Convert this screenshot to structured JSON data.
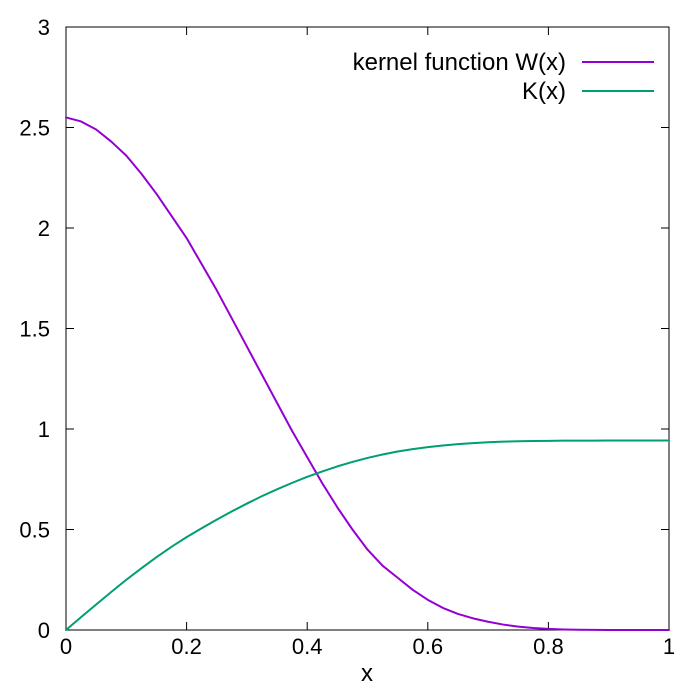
{
  "chart_data": {
    "type": "line",
    "title": "",
    "xlabel": "x",
    "ylabel": "",
    "xlim": [
      0,
      1
    ],
    "ylim": [
      0,
      3
    ],
    "xticks": [
      0,
      0.2,
      0.4,
      0.6,
      0.8,
      1
    ],
    "xtick_labels": [
      "0",
      "0.2",
      "0.4",
      "0.6",
      "0.8",
      "1"
    ],
    "yticks": [
      0,
      0.5,
      1,
      1.5,
      2,
      2.5,
      3
    ],
    "ytick_labels": [
      "0",
      "0.5",
      "1",
      "1.5",
      "2",
      "2.5",
      "3"
    ],
    "grid": false,
    "legend_position": "top-right",
    "series": [
      {
        "name": "kernel function W(x)",
        "color": "#9400d3",
        "x": [
          0,
          0.025,
          0.05,
          0.075,
          0.1,
          0.125,
          0.15,
          0.175,
          0.2,
          0.225,
          0.25,
          0.275,
          0.3,
          0.325,
          0.35,
          0.375,
          0.4,
          0.425,
          0.45,
          0.475,
          0.5,
          0.525,
          0.55,
          0.575,
          0.6,
          0.625,
          0.65,
          0.675,
          0.7,
          0.725,
          0.75,
          0.775,
          0.8,
          0.825,
          0.85,
          0.875,
          0.9,
          0.925,
          0.95,
          0.975,
          1
        ],
        "y": [
          2.55,
          2.53,
          2.49,
          2.43,
          2.36,
          2.27,
          2.17,
          2.06,
          1.95,
          1.82,
          1.69,
          1.55,
          1.41,
          1.27,
          1.13,
          0.99,
          0.86,
          0.73,
          0.61,
          0.5,
          0.4,
          0.32,
          0.26,
          0.2,
          0.15,
          0.11,
          0.08,
          0.058,
          0.041,
          0.027,
          0.017,
          0.01,
          0.0055,
          0.0027,
          0.0012,
          0.0005,
          0.0002,
          5e-05,
          1e-05,
          0,
          0
        ]
      },
      {
        "name": "K(x)",
        "color": "#009e73",
        "x": [
          0,
          0.025,
          0.05,
          0.075,
          0.1,
          0.125,
          0.15,
          0.175,
          0.2,
          0.225,
          0.25,
          0.275,
          0.3,
          0.325,
          0.35,
          0.375,
          0.4,
          0.425,
          0.45,
          0.475,
          0.5,
          0.525,
          0.55,
          0.575,
          0.6,
          0.625,
          0.65,
          0.675,
          0.7,
          0.725,
          0.75,
          0.775,
          0.8,
          0.825,
          0.85,
          0.875,
          0.9,
          0.925,
          0.95,
          0.975,
          1
        ],
        "y": [
          0,
          0.064,
          0.127,
          0.189,
          0.25,
          0.307,
          0.362,
          0.414,
          0.462,
          0.506,
          0.549,
          0.59,
          0.629,
          0.666,
          0.7,
          0.732,
          0.762,
          0.789,
          0.814,
          0.836,
          0.856,
          0.873,
          0.888,
          0.9,
          0.91,
          0.918,
          0.925,
          0.93,
          0.934,
          0.937,
          0.939,
          0.94,
          0.941,
          0.942,
          0.942,
          0.942,
          0.943,
          0.943,
          0.943,
          0.943,
          0.943
        ]
      }
    ]
  }
}
